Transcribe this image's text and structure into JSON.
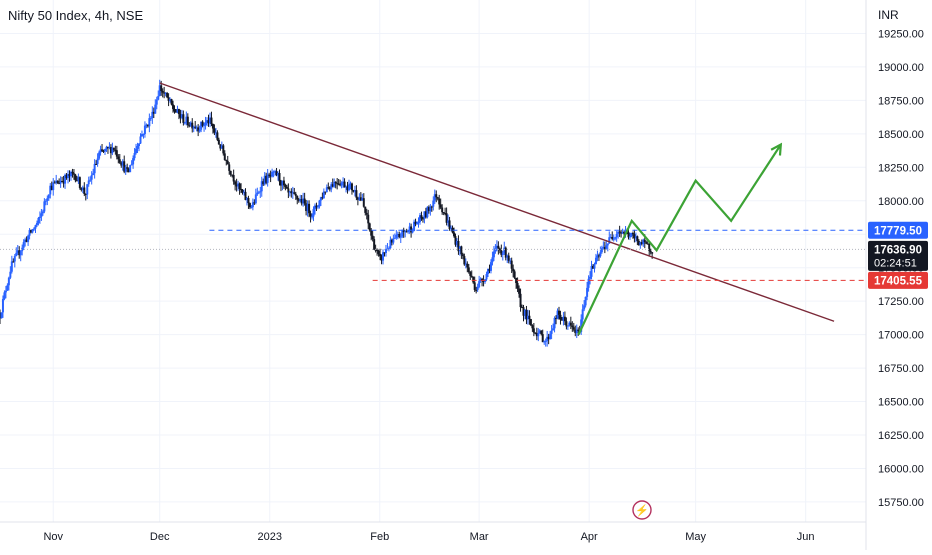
{
  "chart_title": "Nifty 50 Index, 4h, NSE",
  "currency": "INR",
  "colors": {
    "up": "#2962ff",
    "down": "#131722",
    "trendline": "#7b2938",
    "resistance": "#2962ff",
    "support": "#e53935",
    "projection": "#3ca335",
    "price_tag": "#131722",
    "background": "#ffffff",
    "grid": "#f0f3fa"
  },
  "chart_data": {
    "type": "candlestick",
    "title": "Nifty 50 Index, 4h, NSE",
    "y_unit": "INR",
    "ylim": [
      15600,
      19500
    ],
    "y_ticks": [
      15750,
      16000,
      16250,
      16500,
      16750,
      17000,
      17250,
      17500,
      17750,
      18000,
      18250,
      18500,
      18750,
      19000,
      19250
    ],
    "y_tick_labels": [
      "15750.00",
      "16000.00",
      "16250.00",
      "16500.00",
      "16750.00",
      "17000.00",
      "17250.00",
      "17500.00",
      "17750.00",
      "18000.00",
      "18250.00",
      "18500.00",
      "18750.00",
      "19000.00",
      "19250.00"
    ],
    "x_ticks": [
      {
        "label": "Nov",
        "date": "2022-11-01"
      },
      {
        "label": "Dec",
        "date": "2022-12-01"
      },
      {
        "label": "2023",
        "date": "2023-01-01"
      },
      {
        "label": "Feb",
        "date": "2023-02-01"
      },
      {
        "label": "Mar",
        "date": "2023-03-01"
      },
      {
        "label": "Apr",
        "date": "2023-04-01"
      },
      {
        "label": "May",
        "date": "2023-05-01"
      },
      {
        "label": "Jun",
        "date": "2023-06-01"
      }
    ],
    "xlim": [
      "2022-10-17",
      "2023-06-18"
    ],
    "price_path": [
      [
        "2022-10-17",
        17150
      ],
      [
        "2022-10-20",
        17500
      ],
      [
        "2022-10-24",
        17700
      ],
      [
        "2022-10-28",
        17850
      ],
      [
        "2022-10-31",
        18100
      ],
      [
        "2022-11-03",
        18150
      ],
      [
        "2022-11-07",
        18200
      ],
      [
        "2022-11-10",
        18050
      ],
      [
        "2022-11-14",
        18350
      ],
      [
        "2022-11-18",
        18400
      ],
      [
        "2022-11-22",
        18200
      ],
      [
        "2022-11-25",
        18450
      ],
      [
        "2022-11-29",
        18650
      ],
      [
        "2022-12-01",
        18850
      ],
      [
        "2022-12-05",
        18680
      ],
      [
        "2022-12-08",
        18600
      ],
      [
        "2022-12-12",
        18550
      ],
      [
        "2022-12-15",
        18600
      ],
      [
        "2022-12-19",
        18350
      ],
      [
        "2022-12-23",
        18100
      ],
      [
        "2022-12-27",
        17950
      ],
      [
        "2022-12-30",
        18150
      ],
      [
        "2023-01-03",
        18200
      ],
      [
        "2023-01-06",
        18050
      ],
      [
        "2023-01-10",
        18000
      ],
      [
        "2023-01-13",
        17900
      ],
      [
        "2023-01-17",
        18100
      ],
      [
        "2023-01-20",
        18150
      ],
      [
        "2023-01-24",
        18100
      ],
      [
        "2023-01-27",
        18000
      ],
      [
        "2023-01-30",
        17700
      ],
      [
        "2023-02-01",
        17550
      ],
      [
        "2023-02-03",
        17650
      ],
      [
        "2023-02-07",
        17750
      ],
      [
        "2023-02-10",
        17800
      ],
      [
        "2023-02-14",
        17900
      ],
      [
        "2023-02-17",
        18050
      ],
      [
        "2023-02-20",
        17850
      ],
      [
        "2023-02-24",
        17600
      ],
      [
        "2023-02-28",
        17350
      ],
      [
        "2023-03-03",
        17450
      ],
      [
        "2023-03-06",
        17650
      ],
      [
        "2023-03-09",
        17600
      ],
      [
        "2023-03-13",
        17200
      ],
      [
        "2023-03-16",
        17050
      ],
      [
        "2023-03-20",
        16950
      ],
      [
        "2023-03-23",
        17150
      ],
      [
        "2023-03-27",
        17050
      ],
      [
        "2023-03-29",
        17000
      ],
      [
        "2023-04-01",
        17450
      ],
      [
        "2023-04-05",
        17650
      ],
      [
        "2023-04-09",
        17780
      ],
      [
        "2023-04-12",
        17750
      ],
      [
        "2023-04-15",
        17700
      ],
      [
        "2023-04-17",
        17660
      ],
      [
        "2023-04-19",
        17637
      ]
    ],
    "trendline": {
      "points": [
        [
          "2022-12-01",
          18880
        ],
        [
          "2023-06-09",
          17100
        ]
      ]
    },
    "levels": [
      {
        "name": "resistance",
        "value": 17779.5,
        "label": "17779.50"
      },
      {
        "name": "support",
        "value": 17405.55,
        "label": "17405.55"
      }
    ],
    "projection": [
      [
        "2023-03-29",
        17000
      ],
      [
        "2023-04-13",
        17850
      ],
      [
        "2023-04-20",
        17630
      ],
      [
        "2023-05-01",
        18150
      ],
      [
        "2023-05-11",
        17850
      ],
      [
        "2023-05-25",
        18420
      ]
    ],
    "current_price": {
      "value": 17636.9,
      "label": "17636.90",
      "countdown": "02:24:51"
    }
  },
  "watermark": "⚡"
}
